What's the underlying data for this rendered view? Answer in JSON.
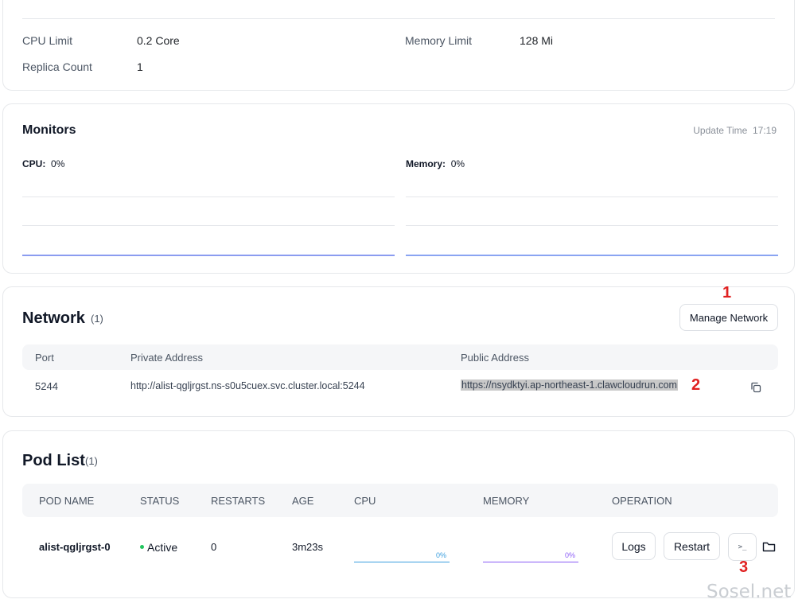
{
  "resources": {
    "cpu_limit_label": "CPU Limit",
    "cpu_limit_value": "0.2 Core",
    "memory_limit_label": "Memory Limit",
    "memory_limit_value": "128 Mi",
    "replica_count_label": "Replica Count",
    "replica_count_value": "1"
  },
  "monitors": {
    "title": "Monitors",
    "update_time_label": "Update Time",
    "update_time_value": "17:19",
    "cpu_label": "CPU:",
    "cpu_value": "0%",
    "memory_label": "Memory:",
    "memory_value": "0%",
    "cpu_line_color": "#8b9cf0",
    "memory_line_color": "#8aa4f2"
  },
  "network": {
    "title": "Network",
    "count": "(1)",
    "manage_button": "Manage Network",
    "columns": [
      "Port",
      "Private Address",
      "Public Address"
    ],
    "rows": [
      {
        "port": "5244",
        "private_address": "http://alist-qgljrgst.ns-s0u5cuex.svc.cluster.local:5244",
        "public_address": "https://nsydktyi.ap-northeast-1.clawcloudrun.com"
      }
    ]
  },
  "pods": {
    "title": "Pod List",
    "count": "(1)",
    "columns": [
      "POD NAME",
      "STATUS",
      "RESTARTS",
      "AGE",
      "CPU",
      "MEMORY",
      "OPERATION"
    ],
    "rows": [
      {
        "name": "alist-qgljrgst-0",
        "status": "Active",
        "restarts": "0",
        "age": "3m23s",
        "cpu": "0%",
        "memory": "0%",
        "logs_button": "Logs",
        "restart_button": "Restart",
        "status_color": "#22c55e",
        "cpu_color": "#3b9ede",
        "memory_color": "#8b5cf6"
      }
    ]
  },
  "annotations": {
    "marker_1": "1",
    "marker_2": "2",
    "marker_3": "3"
  },
  "watermark": "Sosel.net",
  "icons": {
    "copy": "copy-icon",
    "terminal": "terminal-icon",
    "folder": "folder-icon"
  }
}
